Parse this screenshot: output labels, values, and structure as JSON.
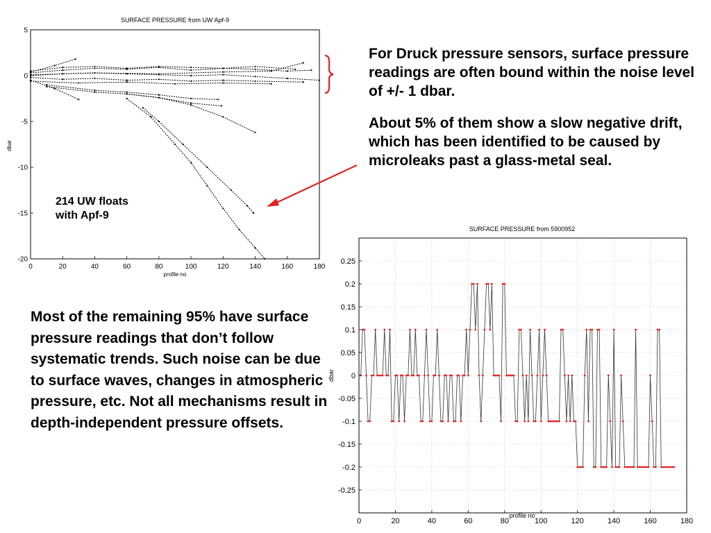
{
  "slide": {
    "right_paragraphs": [
      "For Druck pressure sensors, surface pressure readings are often bound within the noise level of +/- 1 dbar.",
      "About 5% of them show a slow negative drift, which has been identified to be caused by microleaks past a glass-metal seal."
    ],
    "bottom_paragraph": "Most of the remaining 95% have surface pressure readings that don’t follow systematic trends. Such noise can be due to surface waves, changes in atmospheric pressure, etc. Not all mechanisms result in depth-independent pressure offsets.",
    "annotation": [
      "214 UW floats",
      "with Apf-9"
    ],
    "accent_color": "#e02020"
  },
  "chart_data": [
    {
      "type": "line",
      "title": "SURFACE PRESSURE from UW Apf-9",
      "xlabel": "profile no",
      "ylabel": "dbar",
      "xlim": [
        0,
        180
      ],
      "ylim": [
        -20,
        5
      ],
      "xticks": [
        0,
        20,
        40,
        60,
        80,
        100,
        120,
        140,
        160,
        180
      ],
      "yticks": [
        5,
        0,
        -5,
        -10,
        -15,
        -20
      ],
      "grid": false,
      "series": [
        {
          "x": [
            0,
            20,
            40,
            60,
            80,
            100,
            120,
            140,
            160,
            175
          ],
          "y": [
            0.3,
            0.6,
            0.8,
            0.7,
            0.9,
            0.6,
            0.8,
            0.7,
            0.5,
            0.6
          ]
        },
        {
          "x": [
            0,
            20,
            40,
            60,
            80,
            100,
            120,
            140,
            160,
            180
          ],
          "y": [
            0.0,
            0.2,
            0.3,
            0.2,
            0.1,
            0.0,
            0.1,
            -0.1,
            -0.3,
            -0.5
          ]
        },
        {
          "x": [
            0,
            20,
            40,
            60,
            80,
            100,
            120,
            140,
            170
          ],
          "y": [
            -0.2,
            -0.4,
            -0.3,
            -0.5,
            -0.4,
            -0.6,
            -0.5,
            -0.6,
            -0.7
          ]
        },
        {
          "x": [
            0,
            20,
            40,
            60,
            80,
            100,
            120,
            140,
            165
          ],
          "y": [
            0.5,
            0.9,
            1.0,
            0.8,
            1.0,
            0.9,
            0.8,
            1.0,
            0.7
          ]
        },
        {
          "x": [
            0,
            30,
            60,
            90,
            120,
            150
          ],
          "y": [
            -0.6,
            -0.8,
            -0.7,
            -0.9,
            -0.8,
            -0.9
          ]
        },
        {
          "x": [
            0,
            15,
            28
          ],
          "y": [
            0.4,
            1.1,
            1.8
          ]
        },
        {
          "x": [
            0,
            40,
            80,
            120,
            150,
            170
          ],
          "y": [
            0.1,
            0.3,
            0.2,
            0.4,
            0.5,
            1.4
          ]
        },
        {
          "x": [
            0,
            15,
            30
          ],
          "y": [
            -0.5,
            -1.4,
            -2.6
          ]
        },
        {
          "x": [
            10,
            40,
            60,
            80,
            100,
            117
          ],
          "y": [
            -1.0,
            -1.6,
            -1.8,
            -2.1,
            -2.5,
            -2.6
          ]
        },
        {
          "x": [
            10,
            40,
            60,
            80,
            100,
            119
          ],
          "y": [
            -1.2,
            -1.8,
            -2.0,
            -2.4,
            -3.0,
            -3.3
          ]
        },
        {
          "x": [
            60,
            80,
            100,
            120,
            140
          ],
          "y": [
            -2.0,
            -2.4,
            -3.2,
            -4.5,
            -6.2
          ]
        },
        {
          "x": [
            60,
            75,
            90,
            100,
            110,
            120,
            130,
            140,
            146
          ],
          "y": [
            -2.5,
            -4.5,
            -7.5,
            -9.5,
            -12.0,
            -14.5,
            -16.8,
            -18.8,
            -20.0
          ]
        },
        {
          "x": [
            70,
            80,
            95,
            110,
            125,
            135,
            139
          ],
          "y": [
            -3.5,
            -5.0,
            -7.5,
            -10.0,
            -12.5,
            -14.2,
            -15.0
          ]
        }
      ]
    },
    {
      "type": "line",
      "title": "SURFACE PRESSURE from 5900952",
      "xlabel": "profile no",
      "ylabel": "dbar",
      "xlim": [
        0,
        180
      ],
      "ylim": [
        -0.3,
        0.3
      ],
      "xticks": [
        0,
        20,
        40,
        60,
        80,
        100,
        120,
        140,
        160,
        180
      ],
      "yticks": [
        0.25,
        0.2,
        0.15,
        0.1,
        0.05,
        0,
        -0.05,
        -0.1,
        -0.15,
        -0.2,
        -0.25
      ],
      "grid": true,
      "marker_color": "#e02020",
      "series": [
        {
          "x": [
            1,
            2,
            3,
            4,
            5,
            6,
            7,
            8,
            9,
            10,
            11,
            12,
            13,
            14,
            15,
            16,
            17,
            18,
            19,
            20,
            21,
            22,
            23,
            24,
            25,
            26,
            27,
            28,
            29,
            30,
            31,
            32,
            33,
            34,
            35,
            36,
            37,
            38,
            39,
            40,
            41,
            42,
            43,
            44,
            45,
            46,
            47,
            48,
            49,
            50,
            51,
            52,
            53,
            54,
            55,
            56,
            57,
            58,
            59,
            60,
            61,
            62,
            63,
            64,
            65,
            66,
            67,
            68,
            69,
            70,
            71,
            72,
            73,
            74,
            75,
            76,
            77,
            78,
            79,
            80,
            81,
            82,
            83,
            84,
            85,
            86,
            87,
            88,
            89,
            90,
            91,
            92,
            93,
            94,
            95,
            96,
            97,
            98,
            99,
            100,
            101,
            102,
            103,
            104,
            105,
            106,
            107,
            108,
            109,
            110,
            111,
            112,
            113,
            114,
            115,
            116,
            117,
            118,
            119,
            120,
            121,
            122,
            123,
            124,
            125,
            126,
            127,
            128,
            129,
            130,
            131,
            132,
            133,
            134,
            135,
            136,
            137,
            138,
            139,
            140,
            141,
            142,
            143,
            144,
            145,
            146,
            147,
            148,
            149,
            150,
            151,
            152,
            153,
            154,
            155,
            156,
            157,
            158,
            159,
            160,
            161,
            162,
            163,
            164,
            165,
            166,
            167,
            168,
            169,
            170,
            171,
            172,
            173
          ],
          "y": [
            0,
            0.1,
            0.1,
            0,
            -0.1,
            -0.1,
            0,
            0,
            0.1,
            0,
            0,
            0,
            0,
            0.1,
            0,
            0,
            0.1,
            -0.1,
            -0.1,
            0,
            0,
            -0.1,
            0,
            0,
            -0.1,
            0,
            0,
            0.1,
            0,
            0,
            0.1,
            0,
            0,
            -0.1,
            -0.1,
            0,
            0.1,
            0,
            -0.1,
            -0.1,
            0,
            0,
            0.1,
            0,
            -0.1,
            -0.1,
            0,
            0,
            -0.1,
            0,
            0,
            -0.1,
            -0.1,
            0,
            0,
            -0.1,
            0,
            0,
            0.1,
            0,
            0.1,
            0.2,
            0.2,
            0.1,
            0.2,
            0,
            -0.1,
            0,
            0.1,
            0.2,
            0.2,
            0.1,
            0.2,
            0,
            0,
            0,
            0,
            -0.1,
            0.2,
            0.2,
            0,
            0,
            0,
            0,
            0,
            -0.1,
            -0.1,
            0.1,
            0.1,
            0,
            -0.1,
            0,
            -0.1,
            0.1,
            0,
            -0.1,
            -0.1,
            0,
            0.1,
            -0.1,
            0,
            0.1,
            0,
            -0.1,
            -0.1,
            -0.1,
            -0.1,
            -0.1,
            -0.1,
            -0.1,
            0.1,
            0.1,
            0,
            -0.1,
            0,
            -0.1,
            0,
            -0.1,
            -0.1,
            -0.2,
            -0.2,
            -0.2,
            -0.2,
            0,
            0.1,
            -0.1,
            0.1,
            0.1,
            -0.2,
            -0.2,
            0.1,
            0.1,
            -0.2,
            -0.2,
            -0.2,
            -0.2,
            0,
            -0.1,
            -0.2,
            0.1,
            -0.2,
            -0.2,
            -0.2,
            0,
            -0.1,
            -0.2,
            -0.2,
            -0.2,
            -0.2,
            -0.2,
            -0.2,
            0.1,
            -0.2,
            -0.2,
            -0.2,
            -0.2,
            -0.2,
            -0.2,
            -0.2,
            0,
            -0.1,
            -0.2,
            -0.2,
            0.1,
            0.1,
            -0.2,
            -0.2,
            -0.2,
            -0.2,
            -0.2,
            -0.2,
            -0.2,
            -0.2
          ]
        }
      ]
    }
  ]
}
